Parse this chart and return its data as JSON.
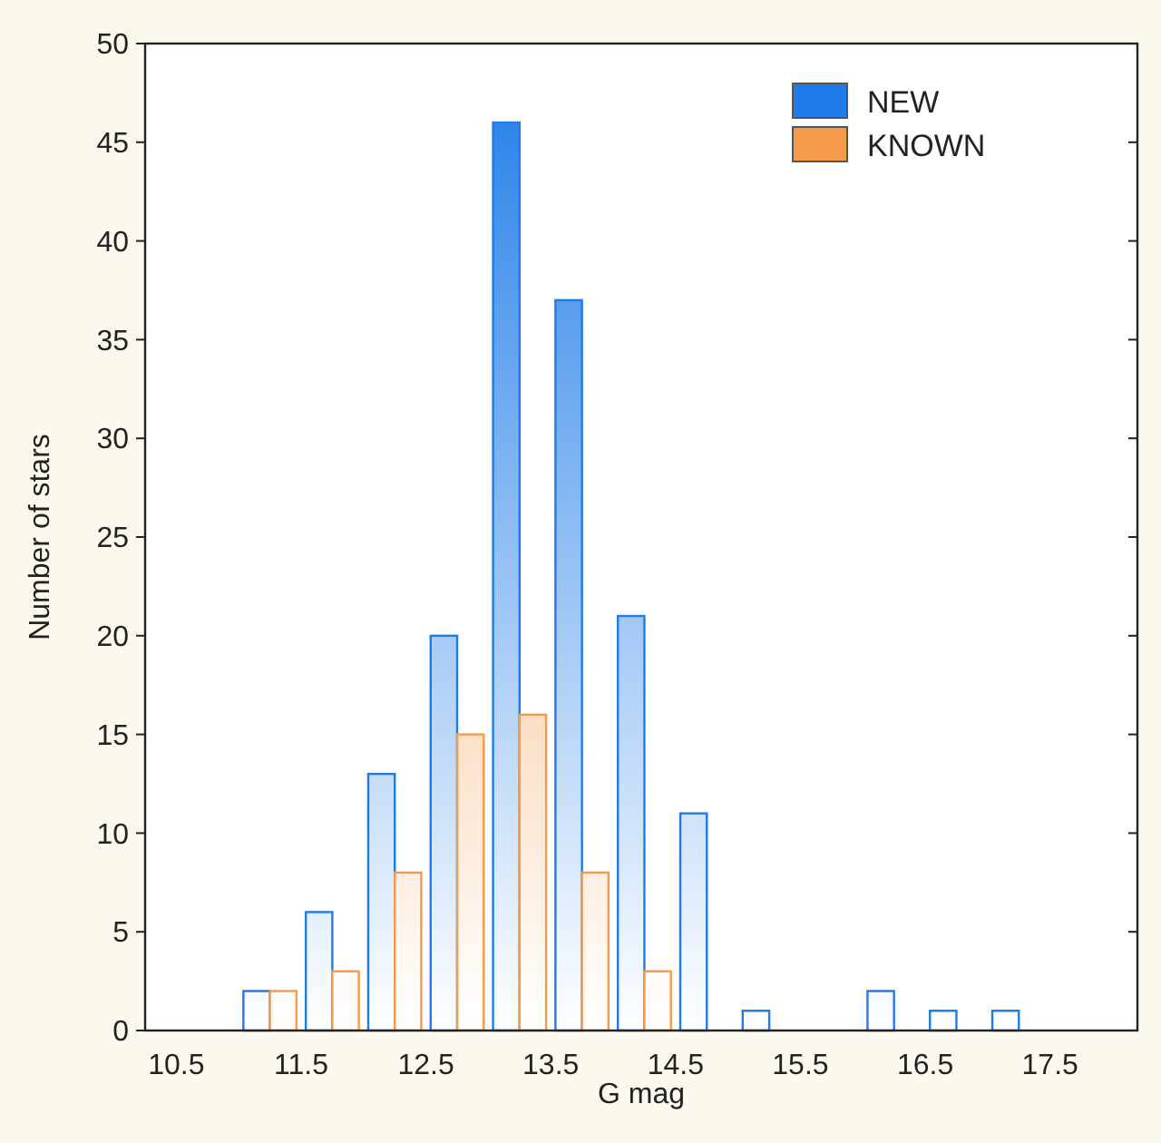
{
  "chart_data": {
    "type": "bar",
    "xlabel": "G mag",
    "ylabel": "Number of stars",
    "x": [
      11.25,
      11.75,
      12.25,
      12.75,
      13.25,
      13.75,
      14.25,
      14.75,
      15.25,
      15.75,
      16.25,
      16.75,
      17.25
    ],
    "series": [
      {
        "name": "NEW",
        "color": "#1e7be8",
        "values": [
          2,
          6,
          13,
          20,
          46,
          37,
          21,
          11,
          1,
          0,
          2,
          1,
          1
        ]
      },
      {
        "name": "KNOWN",
        "color": "#f5994a",
        "values": [
          2,
          3,
          8,
          15,
          16,
          8,
          3,
          0,
          0,
          0,
          0,
          0,
          0
        ]
      }
    ],
    "xlim": [
      10.25,
      18.2
    ],
    "xticks": [
      10.5,
      11.5,
      12.5,
      13.5,
      14.5,
      15.5,
      16.5,
      17.5
    ],
    "ylim": [
      0,
      50
    ],
    "yticks": [
      0,
      5,
      10,
      15,
      20,
      25,
      30,
      35,
      40,
      45,
      50
    ],
    "legend": "top right"
  }
}
